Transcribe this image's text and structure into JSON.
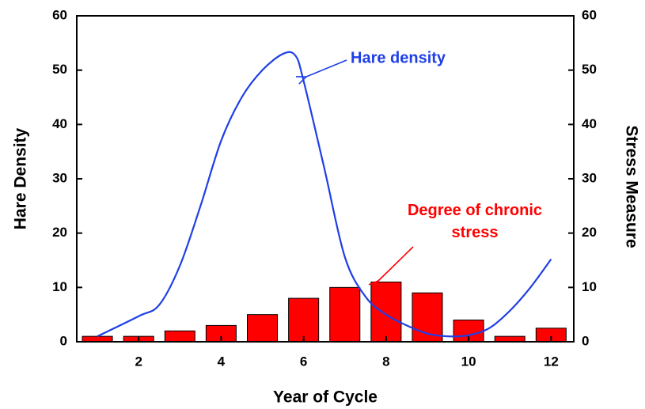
{
  "chart_data": {
    "type": "bar+line",
    "x_label": "Year of Cycle",
    "y_label": "Hare Density",
    "y2_label": "Stress Measure",
    "xlim": [
      0.5,
      12.55
    ],
    "xticks": [
      2,
      4,
      6,
      8,
      10,
      12
    ],
    "ylim": [
      0,
      60
    ],
    "yticks": [
      0,
      10,
      20,
      30,
      40,
      50,
      60
    ],
    "y2lim": [
      0,
      60
    ],
    "y2ticks": [
      0,
      10,
      20,
      30,
      40,
      50,
      60
    ],
    "series": [
      {
        "name": "Hare density",
        "type": "line",
        "color": "#1f3fe6",
        "x": [
          1,
          2,
          2.5,
          3,
          3.5,
          4,
          4.5,
          5,
          5.5,
          5.8,
          6,
          6.5,
          7,
          7.5,
          8,
          8.5,
          9,
          9.5,
          10,
          10.5,
          11,
          11.5,
          12
        ],
        "values": [
          1,
          4.7,
          6.8,
          14,
          25,
          37,
          45,
          50,
          53,
          52.7,
          48,
          32,
          15.6,
          8.3,
          5,
          3,
          1.5,
          1,
          1.2,
          2.5,
          5.7,
          10,
          15.2
        ]
      },
      {
        "name": "Degree of chronic stress",
        "type": "bar",
        "axis": "y2",
        "color": "#ff0000",
        "x": [
          1,
          2,
          3,
          4,
          5,
          6,
          7,
          8,
          9,
          10,
          11,
          12
        ],
        "values": [
          1,
          1,
          2,
          3,
          5,
          8,
          10,
          11,
          9,
          4,
          1,
          2.5
        ]
      }
    ]
  }
}
